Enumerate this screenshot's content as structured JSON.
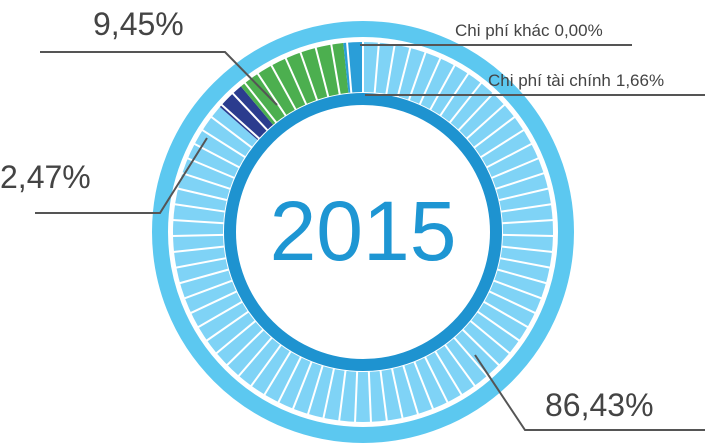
{
  "chart_data": {
    "type": "donut",
    "center_text": "2015",
    "categories": [
      null,
      null,
      null,
      "Chi phí tài chính",
      "Chi phí khác"
    ],
    "values": [
      86.43,
      2.47,
      9.45,
      1.66,
      0.0
    ],
    "value_labels": [
      "86,43%",
      "2,47%",
      "9,45%",
      "1,66%",
      "0,00%"
    ],
    "colors": [
      "#7fd3f6",
      "#2b3c8e",
      "#4caf4f",
      "#2a9ed8",
      "#1f7fc0"
    ]
  }
}
